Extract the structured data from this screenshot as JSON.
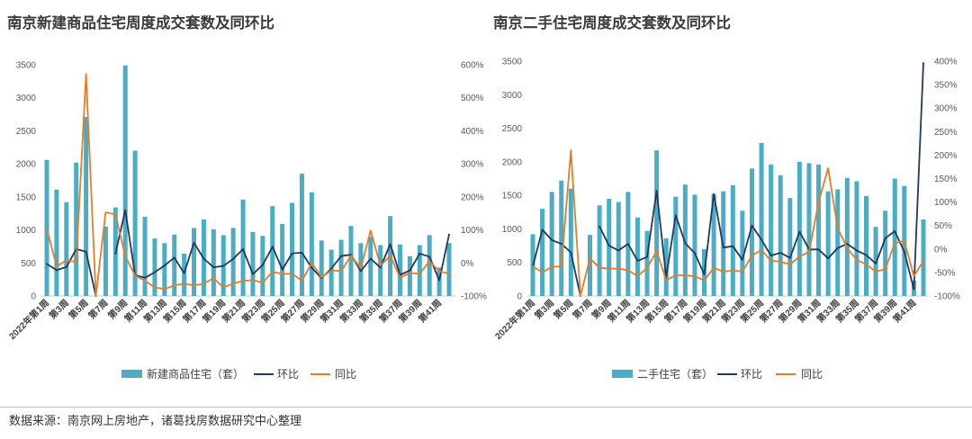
{
  "chart_data": [
    {
      "type": "bar",
      "title": "南京新建商品住宅周度成交套数及同环比",
      "categories": [
        "2022年第1周",
        "",
        "第3周",
        "",
        "第5周",
        "",
        "第7周",
        "",
        "第9周",
        "",
        "第11周",
        "",
        "第13周",
        "",
        "第15周",
        "",
        "第17周",
        "",
        "第19周",
        "",
        "第21周",
        "",
        "第23周",
        "",
        "第25周",
        "",
        "第27周",
        "",
        "第29周",
        "",
        "第31周",
        "",
        "第33周",
        "",
        "第35周",
        "",
        "第37周",
        "",
        "第39周",
        "",
        "第41周",
        ""
      ],
      "ylim": [
        0,
        3500
      ],
      "y2lim": [
        -100,
        600
      ],
      "ytick_labels": [
        "0",
        "500",
        "1000",
        "1500",
        "2000",
        "2500",
        "3000",
        "3500"
      ],
      "y2tick_labels": [
        "-100%",
        "0%",
        "100%",
        "200%",
        "300%",
        "400%",
        "500%",
        "600%"
      ],
      "grid": false,
      "legend": "bottom",
      "series": [
        {
          "name": "新建商品住宅（套）",
          "type": "bar",
          "axis": "left",
          "color": "#4bacc6",
          "values": [
            2060,
            1610,
            1420,
            2020,
            2710,
            0,
            1050,
            1340,
            3490,
            2200,
            1200,
            870,
            800,
            930,
            640,
            1030,
            1160,
            1010,
            920,
            1030,
            1460,
            970,
            910,
            1360,
            1090,
            1410,
            1850,
            1570,
            840,
            700,
            850,
            1060,
            800,
            900,
            770,
            1210,
            780,
            600,
            770,
            920,
            430,
            800
          ]
        },
        {
          "name": "环比",
          "type": "line",
          "axis": "right",
          "color": "#203864",
          "values": [
            -3,
            -22,
            -12,
            42,
            34,
            -100,
            null,
            28,
            160,
            -37,
            -45,
            -28,
            -8,
            16,
            -31,
            61,
            13,
            -13,
            -9,
            12,
            42,
            -34,
            -6,
            49,
            -20,
            29,
            31,
            -15,
            -46,
            -17,
            21,
            25,
            -25,
            13,
            -14,
            57,
            -36,
            -23,
            28,
            19,
            -53,
            86
          ]
        },
        {
          "name": "同比",
          "type": "line",
          "axis": "right",
          "color": "#e47d2a",
          "values": [
            104,
            -11,
            8,
            3,
            572,
            -100,
            153,
            147,
            20,
            -38,
            -54,
            -74,
            -79,
            -68,
            -63,
            -68,
            -63,
            -46,
            -74,
            -63,
            -54,
            -52,
            -60,
            -27,
            -33,
            -33,
            -54,
            0,
            -44,
            -22,
            -25,
            22,
            -16,
            98,
            -8,
            22,
            -44,
            -30,
            -33,
            5,
            -25,
            -33
          ]
        }
      ]
    },
    {
      "type": "bar",
      "title": "南京二手住宅周度成交套数及同环比",
      "categories": [
        "2022年第1周",
        "",
        "第3周",
        "",
        "第5周",
        "",
        "第7周",
        "",
        "第9周",
        "",
        "第11周",
        "",
        "第13周",
        "",
        "第15周",
        "",
        "第17周",
        "",
        "第19周",
        "",
        "第21周",
        "",
        "第23周",
        "",
        "第25周",
        "",
        "第27周",
        "",
        "第29周",
        "",
        "第31周",
        "",
        "第33周",
        "",
        "第35周",
        "",
        "第37周",
        "",
        "第39周",
        "",
        "第41周",
        ""
      ],
      "ylim": [
        0,
        3500
      ],
      "y2lim": [
        -100,
        400
      ],
      "ytick_labels": [
        "0",
        "500",
        "1000",
        "1500",
        "2000",
        "2500",
        "3000",
        "3500"
      ],
      "y2tick_labels": [
        "-100%",
        "-50%",
        "0%",
        "50%",
        "100%",
        "150%",
        "200%",
        "250%",
        "300%",
        "350%",
        "400%"
      ],
      "grid": false,
      "legend": "bottom",
      "series": [
        {
          "name": "二手住宅（套）",
          "type": "bar",
          "axis": "left",
          "color": "#4bacc6",
          "values": [
            920,
            1300,
            1550,
            1720,
            1600,
            0,
            910,
            1350,
            1450,
            1400,
            1550,
            1170,
            970,
            2170,
            860,
            1480,
            1660,
            1510,
            700,
            1520,
            1560,
            1650,
            1270,
            1900,
            2280,
            1960,
            1800,
            1460,
            2000,
            1980,
            1960,
            1560,
            1590,
            1760,
            1710,
            1490,
            1030,
            1270,
            1750,
            1640,
            230,
            1140
          ]
        },
        {
          "name": "环比",
          "type": "line",
          "axis": "right",
          "color": "#203864",
          "values": [
            -37,
            41,
            19,
            11,
            -7,
            -100,
            null,
            48,
            7,
            -3,
            11,
            -25,
            -17,
            124,
            -60,
            72,
            12,
            -9,
            -54,
            117,
            3,
            6,
            -23,
            50,
            20,
            -14,
            -8,
            -19,
            37,
            -1,
            -1,
            -20,
            2,
            11,
            -3,
            -13,
            -31,
            23,
            38,
            -6,
            -86,
            396
          ]
        },
        {
          "name": "同比",
          "type": "line",
          "axis": "right",
          "color": "#e47d2a",
          "values": [
            -37,
            -50,
            -38,
            -37,
            210,
            -100,
            -20,
            -40,
            -42,
            -42,
            -45,
            -58,
            -40,
            -5,
            -66,
            -56,
            -56,
            -58,
            -67,
            -40,
            -48,
            -46,
            -48,
            -14,
            -2,
            -25,
            -27,
            -33,
            -16,
            -6,
            100,
            172,
            45,
            2,
            -23,
            -33,
            -48,
            -43,
            13,
            17,
            -58,
            -25
          ]
        }
      ]
    }
  ],
  "footer": {
    "source": "数据来源：南京网上房地产，诸葛找房数据研究中心整理"
  }
}
